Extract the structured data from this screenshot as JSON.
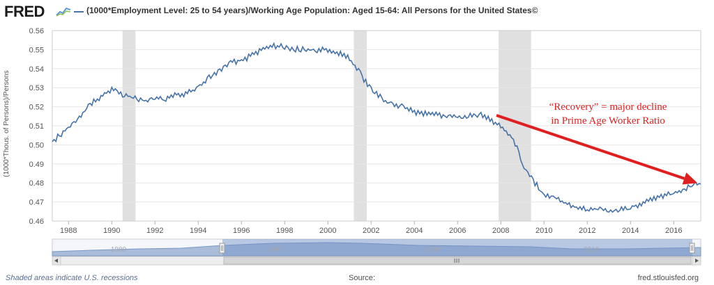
{
  "header": {
    "logo_text": "FRED",
    "series_title": "(1000*Employment Level: 25 to 54 years)/Working Age Population: Aged 15-64: All Persons for the United States©"
  },
  "footer": {
    "note": "Shaded areas indicate U.S. recessions",
    "source_label": "Source:",
    "url": "fred.stlouisfed.org"
  },
  "navigator": {
    "labels": [
      "1980",
      "1990",
      "2000",
      "2010"
    ],
    "scroll_icon": "grip-lines-icon"
  },
  "colors": {
    "line": "#4572a7",
    "recession": "#e0e0e0",
    "arrow": "#e02020",
    "grid": "#e6e6e6"
  },
  "chart_data": {
    "type": "line",
    "title": "(1000*Employment Level: 25 to 54 years)/Working Age Population: Aged 15-64: All Persons for the United States©",
    "ylabel": "(1000*Thous. of Persons)/Persons",
    "xlabel": "",
    "xlim": [
      1987.25,
      2017.25
    ],
    "ylim": [
      0.46,
      0.56
    ],
    "x_ticks": [
      "1988",
      "1990",
      "1992",
      "1994",
      "1996",
      "1998",
      "2000",
      "2002",
      "2004",
      "2006",
      "2008",
      "2010",
      "2012",
      "2014",
      "2016"
    ],
    "y_ticks": [
      "0.46",
      "0.47",
      "0.48",
      "0.49",
      "0.50",
      "0.51",
      "0.52",
      "0.53",
      "0.54",
      "0.55",
      "0.56"
    ],
    "grid": true,
    "recessions": [
      [
        1990.5,
        1991.1
      ],
      [
        2001.2,
        2001.8
      ],
      [
        2007.9,
        2009.4
      ]
    ],
    "series": [
      {
        "name": "",
        "x": [
          1987.25,
          1987.5,
          1988.0,
          1988.5,
          1989.0,
          1989.5,
          1990.0,
          1990.25,
          1990.5,
          1991.0,
          1991.5,
          1992.0,
          1992.5,
          1993.0,
          1993.5,
          1994.0,
          1994.5,
          1995.0,
          1995.5,
          1996.0,
          1996.5,
          1997.0,
          1997.5,
          1998.0,
          1998.5,
          1999.0,
          1999.5,
          2000.0,
          2000.5,
          2001.0,
          2001.5,
          2002.0,
          2002.5,
          2003.0,
          2003.5,
          2004.0,
          2004.5,
          2005.0,
          2005.5,
          2006.0,
          2006.5,
          2007.0,
          2007.5,
          2008.0,
          2008.5,
          2008.75,
          2009.0,
          2009.5,
          2010.0,
          2010.5,
          2011.0,
          2011.5,
          2012.0,
          2012.5,
          2013.0,
          2013.5,
          2014.0,
          2014.5,
          2015.0,
          2015.5,
          2016.0,
          2016.5,
          2017.0,
          2017.25
        ],
        "y": [
          0.5025,
          0.505,
          0.51,
          0.515,
          0.522,
          0.526,
          0.53,
          0.529,
          0.527,
          0.526,
          0.524,
          0.525,
          0.525,
          0.527,
          0.528,
          0.531,
          0.536,
          0.54,
          0.544,
          0.545,
          0.548,
          0.551,
          0.553,
          0.552,
          0.551,
          0.551,
          0.55,
          0.551,
          0.549,
          0.546,
          0.538,
          0.53,
          0.525,
          0.522,
          0.521,
          0.518,
          0.517,
          0.5165,
          0.516,
          0.5155,
          0.516,
          0.517,
          0.514,
          0.511,
          0.505,
          0.499,
          0.49,
          0.482,
          0.4745,
          0.473,
          0.47,
          0.468,
          0.467,
          0.4675,
          0.4665,
          0.4665,
          0.468,
          0.47,
          0.4725,
          0.474,
          0.475,
          0.4775,
          0.48,
          0.4795
        ]
      }
    ],
    "annotation": {
      "lines": [
        "“Recovery” = major decline",
        "in Prime Age Worker Ratio"
      ],
      "arrow_from": [
        2007.8,
        0.5155
      ],
      "arrow_to": [
        2017.1,
        0.48
      ]
    }
  }
}
